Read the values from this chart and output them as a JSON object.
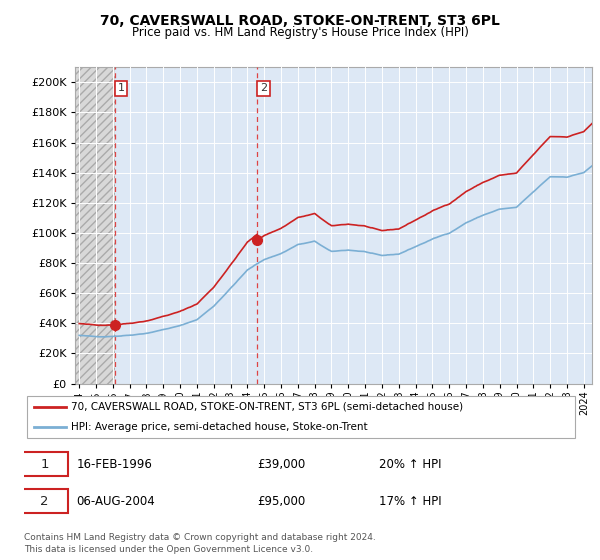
{
  "title": "70, CAVERSWALL ROAD, STOKE-ON-TRENT, ST3 6PL",
  "subtitle": "Price paid vs. HM Land Registry's House Price Index (HPI)",
  "legend_line1": "70, CAVERSWALL ROAD, STOKE-ON-TRENT, ST3 6PL (semi-detached house)",
  "legend_line2": "HPI: Average price, semi-detached house, Stoke-on-Trent",
  "sale1_date": "16-FEB-1996",
  "sale1_price": "£39,000",
  "sale1_hpi": "20% ↑ HPI",
  "sale2_date": "06-AUG-2004",
  "sale2_price": "£95,000",
  "sale2_hpi": "17% ↑ HPI",
  "footer": "Contains HM Land Registry data © Crown copyright and database right 2024.\nThis data is licensed under the Open Government Licence v3.0.",
  "hpi_color": "#7bafd4",
  "price_color": "#cc2222",
  "marker_color": "#cc2222",
  "ylim": [
    0,
    210000
  ],
  "sale1_year": 1996.12,
  "sale1_value": 39000,
  "sale2_year": 2004.6,
  "sale2_value": 95000,
  "xstart": 1993.75,
  "xend": 2024.5
}
